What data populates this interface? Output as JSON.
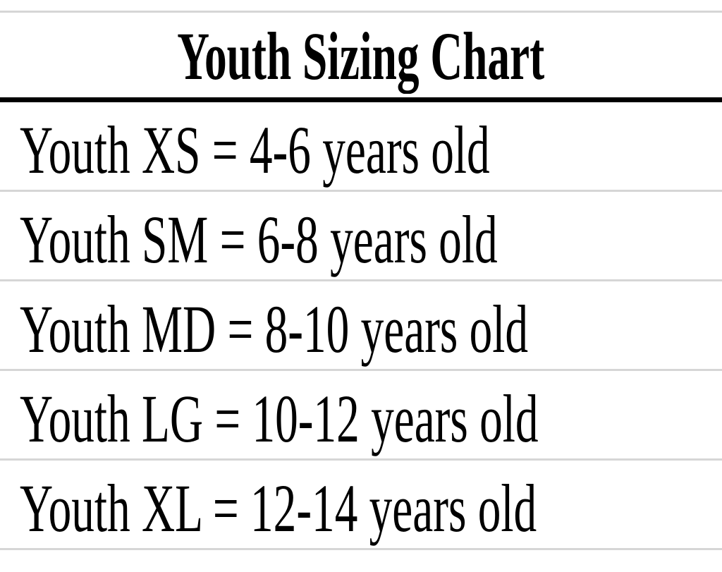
{
  "title": "Youth Sizing Chart",
  "rows": [
    {
      "text": "Youth XS = 4-6 years old"
    },
    {
      "text": "Youth SM = 6-8 years old"
    },
    {
      "text": "Youth MD = 8-10 years old"
    },
    {
      "text": "Youth LG = 10-12 years old"
    },
    {
      "text": "Youth XL = 12-14 years old"
    }
  ]
}
